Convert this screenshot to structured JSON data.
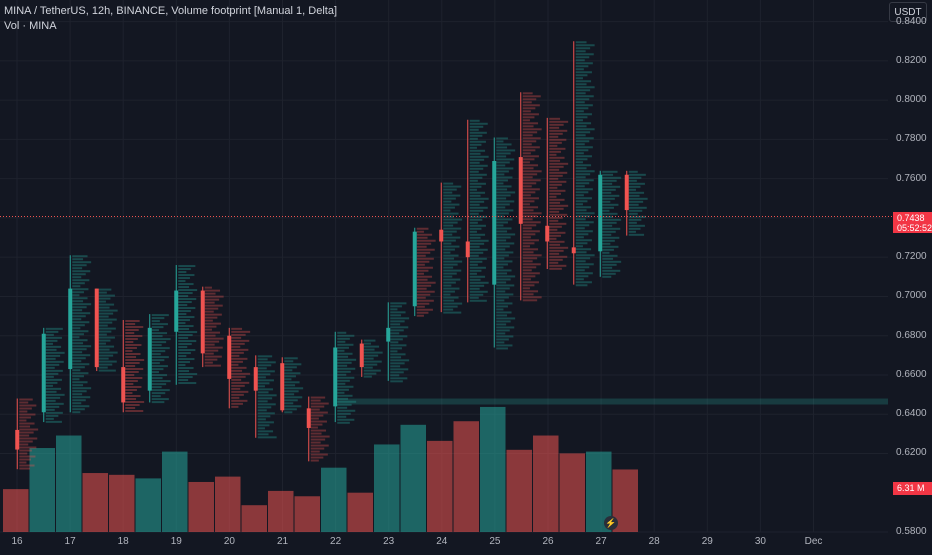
{
  "header": {
    "title": "MINA / TetherUS, 12h, BINANCE, Volume footprint [Manual 1, Delta]",
    "vol_label": "Vol · MINA",
    "currency": "USDT"
  },
  "price_axis": [
    "0.8400",
    "0.8200",
    "0.8000",
    "0.7800",
    "0.7600",
    "0.7400",
    "0.7200",
    "0.7000",
    "0.6800",
    "0.6600",
    "0.6400",
    "0.6200",
    "0.5800"
  ],
  "date_axis": [
    "16",
    "17",
    "18",
    "19",
    "20",
    "21",
    "22",
    "23",
    "24",
    "25",
    "26",
    "27",
    "28",
    "29",
    "30",
    "Dec"
  ],
  "last_price": {
    "price": "0.7438",
    "countdown": "05:52:52"
  },
  "volume_label": "6.31 M",
  "colors": {
    "up": "#26a69a",
    "down": "#ef5350",
    "bg": "#131722",
    "grid": "#1e222d",
    "text": "#b2b5be"
  },
  "icons": {
    "bolt": "lightning-bolt-icon"
  },
  "chart_data": {
    "type": "candlestick-footprint",
    "title": "MINA / TetherUS, 12h, BINANCE, Volume footprint [Manual 1, Delta]",
    "candles": [
      {
        "date": "16",
        "o": 0.632,
        "h": 0.648,
        "l": 0.612,
        "c": 0.622
      },
      {
        "date": "16",
        "o": 0.641,
        "h": 0.684,
        "l": 0.636,
        "c": 0.681
      },
      {
        "date": "17",
        "o": 0.663,
        "h": 0.721,
        "l": 0.641,
        "c": 0.704
      },
      {
        "date": "17",
        "o": 0.704,
        "h": 0.704,
        "l": 0.662,
        "c": 0.664
      },
      {
        "date": "18",
        "o": 0.664,
        "h": 0.688,
        "l": 0.641,
        "c": 0.646
      },
      {
        "date": "18",
        "o": 0.652,
        "h": 0.691,
        "l": 0.646,
        "c": 0.684
      },
      {
        "date": "19",
        "o": 0.682,
        "h": 0.716,
        "l": 0.655,
        "c": 0.703
      },
      {
        "date": "19",
        "o": 0.703,
        "h": 0.705,
        "l": 0.664,
        "c": 0.671
      },
      {
        "date": "20",
        "o": 0.68,
        "h": 0.684,
        "l": 0.643,
        "c": 0.658
      },
      {
        "date": "20",
        "o": 0.664,
        "h": 0.67,
        "l": 0.628,
        "c": 0.652
      },
      {
        "date": "21",
        "o": 0.666,
        "h": 0.669,
        "l": 0.641,
        "c": 0.642
      },
      {
        "date": "21",
        "o": 0.643,
        "h": 0.649,
        "l": 0.616,
        "c": 0.633
      },
      {
        "date": "22",
        "o": 0.644,
        "h": 0.682,
        "l": 0.636,
        "c": 0.674
      },
      {
        "date": "22",
        "o": 0.676,
        "h": 0.678,
        "l": 0.659,
        "c": 0.664
      },
      {
        "date": "23",
        "o": 0.677,
        "h": 0.697,
        "l": 0.657,
        "c": 0.684
      },
      {
        "date": "23",
        "o": 0.695,
        "h": 0.735,
        "l": 0.69,
        "c": 0.733
      },
      {
        "date": "24",
        "o": 0.734,
        "h": 0.758,
        "l": 0.692,
        "c": 0.728
      },
      {
        "date": "24",
        "o": 0.728,
        "h": 0.79,
        "l": 0.697,
        "c": 0.72
      },
      {
        "date": "25",
        "o": 0.706,
        "h": 0.781,
        "l": 0.674,
        "c": 0.769
      },
      {
        "date": "25",
        "o": 0.771,
        "h": 0.804,
        "l": 0.698,
        "c": 0.737
      },
      {
        "date": "26",
        "o": 0.736,
        "h": 0.791,
        "l": 0.714,
        "c": 0.728
      },
      {
        "date": "26",
        "o": 0.725,
        "h": 0.83,
        "l": 0.706,
        "c": 0.722
      },
      {
        "date": "27",
        "o": 0.723,
        "h": 0.764,
        "l": 0.71,
        "c": 0.762
      },
      {
        "date": "27",
        "o": 0.762,
        "h": 0.764,
        "l": 0.731,
        "c": 0.744
      }
    ],
    "volumes": [
      {
        "date": "16",
        "v": 2.4
      },
      {
        "date": "16",
        "v": 4.7
      },
      {
        "date": "17",
        "v": 5.4
      },
      {
        "date": "17",
        "v": 3.3
      },
      {
        "date": "18",
        "v": 3.2
      },
      {
        "date": "18",
        "v": 3.0
      },
      {
        "date": "19",
        "v": 4.5
      },
      {
        "date": "19",
        "v": 2.8
      },
      {
        "date": "20",
        "v": 3.1
      },
      {
        "date": "20",
        "v": 1.5
      },
      {
        "date": "21",
        "v": 2.3
      },
      {
        "date": "21",
        "v": 2.0
      },
      {
        "date": "22",
        "v": 3.6
      },
      {
        "date": "22",
        "v": 2.2
      },
      {
        "date": "23",
        "v": 4.9
      },
      {
        "date": "23",
        "v": 6.0
      },
      {
        "date": "24",
        "v": 5.1
      },
      {
        "date": "24",
        "v": 6.2
      },
      {
        "date": "25",
        "v": 7.0
      },
      {
        "date": "25",
        "v": 4.6
      },
      {
        "date": "26",
        "v": 5.4
      },
      {
        "date": "26",
        "v": 4.4
      },
      {
        "date": "27",
        "v": 4.5
      },
      {
        "date": "27",
        "v": 3.5
      }
    ],
    "y_range": [
      0.58,
      0.85
    ],
    "grid": true
  }
}
